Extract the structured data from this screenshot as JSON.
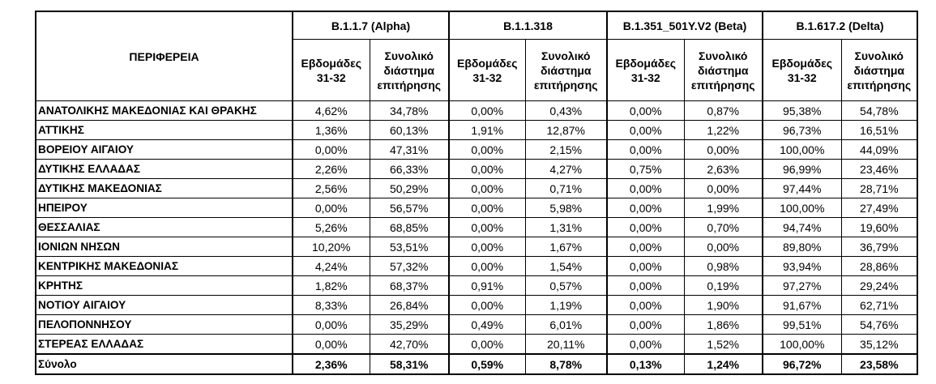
{
  "header": {
    "region_label": "ΠΕΡΙΦΕΡΕΙΑ",
    "groups": [
      "B.1.1.7 (Alpha)",
      "B.1.1.318",
      "B.1.351_501Y.V2 (Beta)",
      "B.1.617.2 (Delta)"
    ],
    "sub_headers": [
      "Εβδομάδες 31-32",
      "Συνολικό διάστημα επιτήρησης"
    ]
  },
  "table": {
    "rows": [
      [
        "ΑΝΑΤΟΛΙΚΗΣ ΜΑΚΕΔΟΝΙΑΣ ΚΑΙ ΘΡΑΚΗΣ",
        "4,62%",
        "34,78%",
        "0,00%",
        "0,43%",
        "0,00%",
        "0,87%",
        "95,38%",
        "54,78%"
      ],
      [
        "ΑΤΤΙΚΗΣ",
        "1,36%",
        "60,13%",
        "1,91%",
        "12,87%",
        "0,00%",
        "1,22%",
        "96,73%",
        "16,51%"
      ],
      [
        "ΒΟΡΕΙΟΥ ΑΙΓΑΙΟΥ",
        "0,00%",
        "47,31%",
        "0,00%",
        "2,15%",
        "0,00%",
        "0,00%",
        "100,00%",
        "44,09%"
      ],
      [
        "ΔΥΤΙΚΗΣ ΕΛΛΑΔΑΣ",
        "2,26%",
        "66,33%",
        "0,00%",
        "4,27%",
        "0,75%",
        "2,63%",
        "96,99%",
        "23,46%"
      ],
      [
        "ΔΥΤΙΚΗΣ ΜΑΚΕΔΟΝΙΑΣ",
        "2,56%",
        "50,29%",
        "0,00%",
        "0,71%",
        "0,00%",
        "0,00%",
        "97,44%",
        "28,71%"
      ],
      [
        "ΗΠΕΙΡΟΥ",
        "0,00%",
        "56,57%",
        "0,00%",
        "5,98%",
        "0,00%",
        "1,99%",
        "100,00%",
        "27,49%"
      ],
      [
        "ΘΕΣΣΑΛΙΑΣ",
        "5,26%",
        "68,85%",
        "0,00%",
        "1,31%",
        "0,00%",
        "0,70%",
        "94,74%",
        "19,60%"
      ],
      [
        "ΙΟΝΙΩΝ ΝΗΣΩΝ",
        "10,20%",
        "53,51%",
        "0,00%",
        "1,67%",
        "0,00%",
        "0,00%",
        "89,80%",
        "36,79%"
      ],
      [
        "ΚΕΝΤΡΙΚΗΣ ΜΑΚΕΔΟΝΙΑΣ",
        "4,24%",
        "57,32%",
        "0,00%",
        "1,54%",
        "0,00%",
        "0,98%",
        "93,94%",
        "28,86%"
      ],
      [
        "ΚΡΗΤΗΣ",
        "1,82%",
        "68,37%",
        "0,91%",
        "0,57%",
        "0,00%",
        "0,19%",
        "97,27%",
        "29,24%"
      ],
      [
        "ΝΟΤΙΟΥ ΑΙΓΑΙΟΥ",
        "8,33%",
        "26,84%",
        "0,00%",
        "1,19%",
        "0,00%",
        "1,90%",
        "91,67%",
        "62,71%"
      ],
      [
        "ΠΕΛΟΠΟΝΝΗΣΟΥ",
        "0,00%",
        "35,29%",
        "0,49%",
        "6,01%",
        "0,00%",
        "1,86%",
        "99,51%",
        "54,76%"
      ],
      [
        "ΣΤΕΡΕΑΣ ΕΛΛΑΔΑΣ",
        "0,00%",
        "42,70%",
        "0,00%",
        "20,11%",
        "0,00%",
        "1,52%",
        "100,00%",
        "35,12%"
      ]
    ],
    "total": [
      "Σύνολο",
      "2,36%",
      "58,31%",
      "0,59%",
      "8,78%",
      "0,13%",
      "1,24%",
      "96,72%",
      "23,58%"
    ]
  }
}
